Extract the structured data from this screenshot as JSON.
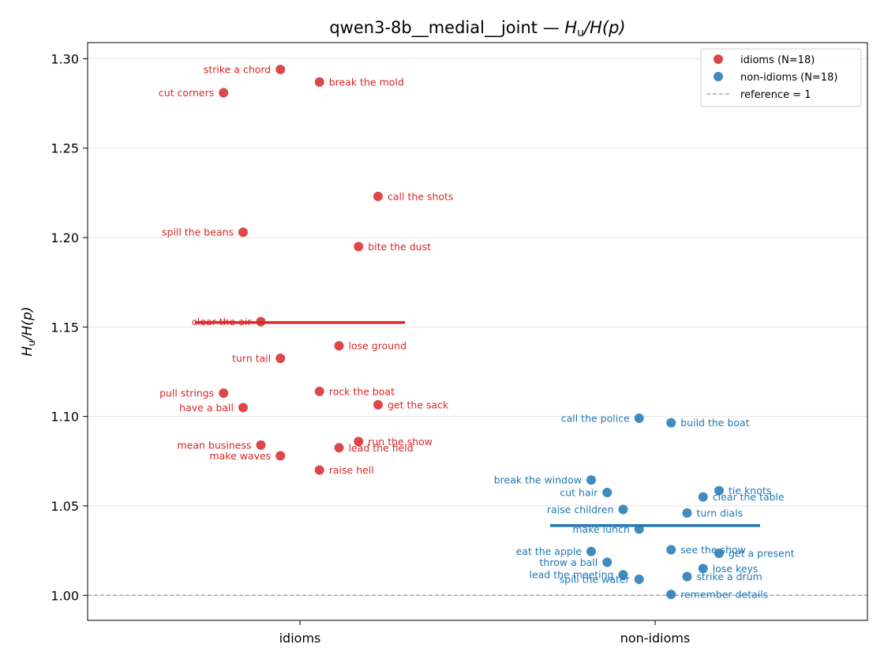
{
  "chart_data": {
    "type": "scatter",
    "title": "qwen3-8b__medial__joint — H_u/H(p)",
    "title_text": "qwen3-8b__medial__joint — ",
    "title_math": "H",
    "title_math_sub": "u",
    "title_math_tail": "/H(p)",
    "ylabel": "H_u/H(p)",
    "ylabel_math": "H",
    "ylabel_math_sub": "u",
    "ylabel_math_tail": "/H(p)",
    "categories": [
      "idioms",
      "non-idioms"
    ],
    "ylim": [
      0.986,
      1.309
    ],
    "yticks": [
      1.0,
      1.05,
      1.1,
      1.15,
      1.2,
      1.25,
      1.3
    ],
    "ytick_labels": [
      "1.00",
      "1.05",
      "1.10",
      "1.15",
      "1.20",
      "1.25",
      "1.30"
    ],
    "grid": "horizontal",
    "legend_position": "top-right",
    "reference_line": {
      "value": 1.0,
      "label": "reference = 1",
      "color": "#999999"
    },
    "series": [
      {
        "name": "idioms (N=18)",
        "category": "idioms",
        "color": "#d62728",
        "mean": 1.1525,
        "points": [
          {
            "label": "strike a chord",
            "x": -0.055,
            "y": 1.294,
            "side": "left"
          },
          {
            "label": "break the mold",
            "x": 0.055,
            "y": 1.287,
            "side": "right"
          },
          {
            "label": "cut corners",
            "x": -0.215,
            "y": 1.281,
            "side": "left"
          },
          {
            "label": "call the shots",
            "x": 0.22,
            "y": 1.223,
            "side": "right"
          },
          {
            "label": "spill the beans",
            "x": -0.16,
            "y": 1.203,
            "side": "left"
          },
          {
            "label": "bite the dust",
            "x": 0.165,
            "y": 1.195,
            "side": "right"
          },
          {
            "label": "clear the air",
            "x": -0.11,
            "y": 1.153,
            "side": "left"
          },
          {
            "label": "lose ground",
            "x": 0.11,
            "y": 1.1395,
            "side": "right"
          },
          {
            "label": "turn tail",
            "x": -0.055,
            "y": 1.1325,
            "side": "left"
          },
          {
            "label": "pull strings",
            "x": -0.215,
            "y": 1.113,
            "side": "left"
          },
          {
            "label": "rock the boat",
            "x": 0.055,
            "y": 1.114,
            "side": "right"
          },
          {
            "label": "have a ball",
            "x": -0.16,
            "y": 1.105,
            "side": "left"
          },
          {
            "label": "get the sack",
            "x": 0.22,
            "y": 1.1065,
            "side": "right"
          },
          {
            "label": "mean business",
            "x": -0.11,
            "y": 1.084,
            "side": "left"
          },
          {
            "label": "run the show",
            "x": 0.165,
            "y": 1.086,
            "side": "right"
          },
          {
            "label": "lead the field",
            "x": 0.11,
            "y": 1.0825,
            "side": "right"
          },
          {
            "label": "make waves",
            "x": -0.055,
            "y": 1.078,
            "side": "left"
          },
          {
            "label": "raise hell",
            "x": 0.055,
            "y": 1.07,
            "side": "right"
          }
        ]
      },
      {
        "name": "non-idioms (N=18)",
        "category": "non-idioms",
        "color": "#1f77b4",
        "mean": 1.039,
        "points": [
          {
            "label": "call the police",
            "x": -0.045,
            "y": 1.099,
            "side": "left"
          },
          {
            "label": "build the boat",
            "x": 0.045,
            "y": 1.0965,
            "side": "right"
          },
          {
            "label": "break the window",
            "x": -0.18,
            "y": 1.0645,
            "side": "left"
          },
          {
            "label": "tie knots",
            "x": 0.18,
            "y": 1.0585,
            "side": "right"
          },
          {
            "label": "cut hair",
            "x": -0.135,
            "y": 1.0575,
            "side": "left"
          },
          {
            "label": "clear the table",
            "x": 0.135,
            "y": 1.055,
            "side": "right"
          },
          {
            "label": "raise children",
            "x": -0.09,
            "y": 1.048,
            "side": "left"
          },
          {
            "label": "turn dials",
            "x": 0.09,
            "y": 1.046,
            "side": "right"
          },
          {
            "label": "make lunch",
            "x": -0.045,
            "y": 1.037,
            "side": "left"
          },
          {
            "label": "see the show",
            "x": 0.045,
            "y": 1.0255,
            "side": "right"
          },
          {
            "label": "eat the apple",
            "x": -0.18,
            "y": 1.0245,
            "side": "left"
          },
          {
            "label": "get a present",
            "x": 0.18,
            "y": 1.0235,
            "side": "right"
          },
          {
            "label": "throw a ball",
            "x": -0.135,
            "y": 1.0185,
            "side": "left"
          },
          {
            "label": "lose keys",
            "x": 0.135,
            "y": 1.015,
            "side": "right"
          },
          {
            "label": "lead the meeting",
            "x": -0.09,
            "y": 1.0115,
            "side": "left"
          },
          {
            "label": "strike a drum",
            "x": 0.09,
            "y": 1.0105,
            "side": "right"
          },
          {
            "label": "spill the water",
            "x": -0.045,
            "y": 1.009,
            "side": "left"
          },
          {
            "label": "remember details",
            "x": 0.045,
            "y": 1.0005,
            "side": "right"
          }
        ]
      }
    ]
  }
}
